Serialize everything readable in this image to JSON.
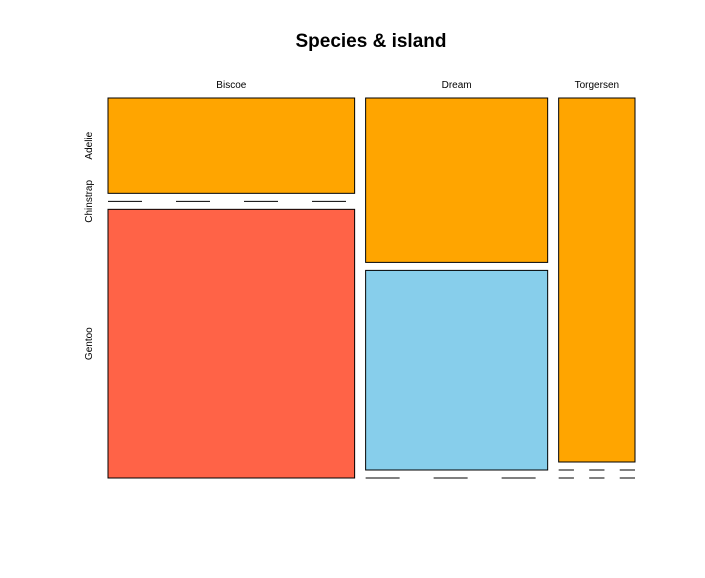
{
  "chart_data": {
    "type": "mosaic",
    "title": "Species & island",
    "x_variable_levels": [
      "Biscoe",
      "Dream",
      "Torgersen"
    ],
    "y_variable_levels": [
      "Adelie",
      "Chinstrap",
      "Gentoo"
    ],
    "counts": {
      "Biscoe": {
        "Adelie": 44,
        "Chinstrap": 0,
        "Gentoo": 124
      },
      "Dream": {
        "Adelie": 56,
        "Chinstrap": 68,
        "Gentoo": 0
      },
      "Torgersen": {
        "Adelie": 52,
        "Chinstrap": 0,
        "Gentoo": 0
      }
    },
    "colors": {
      "Adelie": "#FFA500",
      "Chinstrap": "#87CEEB",
      "Gentoo": "#FF6347"
    },
    "border_color": "#000000"
  }
}
